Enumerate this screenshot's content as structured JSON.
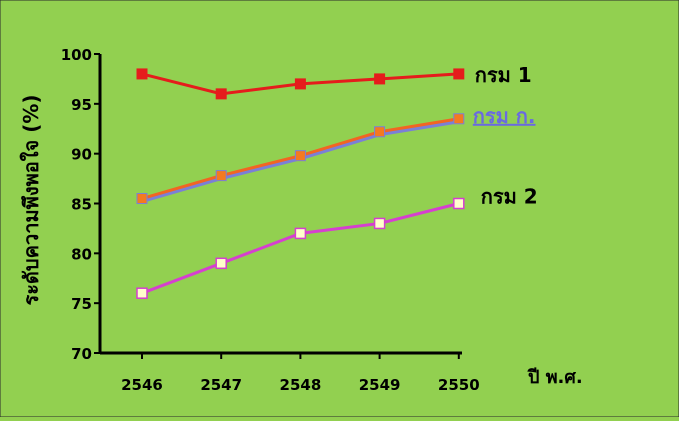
{
  "chart_data": {
    "type": "line",
    "title": "",
    "xlabel": "ปี พ.ศ.",
    "ylabel": "ระดับความพึงพอใจ (%)",
    "x": [
      "2546",
      "2547",
      "2548",
      "2549",
      "2550"
    ],
    "ylim": [
      70,
      100
    ],
    "yticks": [
      70,
      75,
      80,
      85,
      90,
      95,
      100
    ],
    "grid": false,
    "legend": "none",
    "series": [
      {
        "name": "กรม 1",
        "values": [
          98,
          96,
          97,
          97.5,
          98
        ],
        "color": "#e51c1c",
        "marker": "square-filled",
        "marker_color": "#e51c1c"
      },
      {
        "name": "กรม ก.",
        "values": [
          85.5,
          87.8,
          89.8,
          92.2,
          93.5
        ],
        "color": "#f26522",
        "shadow_color": "#7b7fd6",
        "marker": "square-filled",
        "marker_color": "#f47a20",
        "label_color": "#6a6ae0"
      },
      {
        "name": "กรม 2",
        "values": [
          76,
          79,
          82,
          83,
          85
        ],
        "color": "#d63fd0",
        "marker": "square-open",
        "marker_color": "#ffffcc"
      }
    ]
  }
}
